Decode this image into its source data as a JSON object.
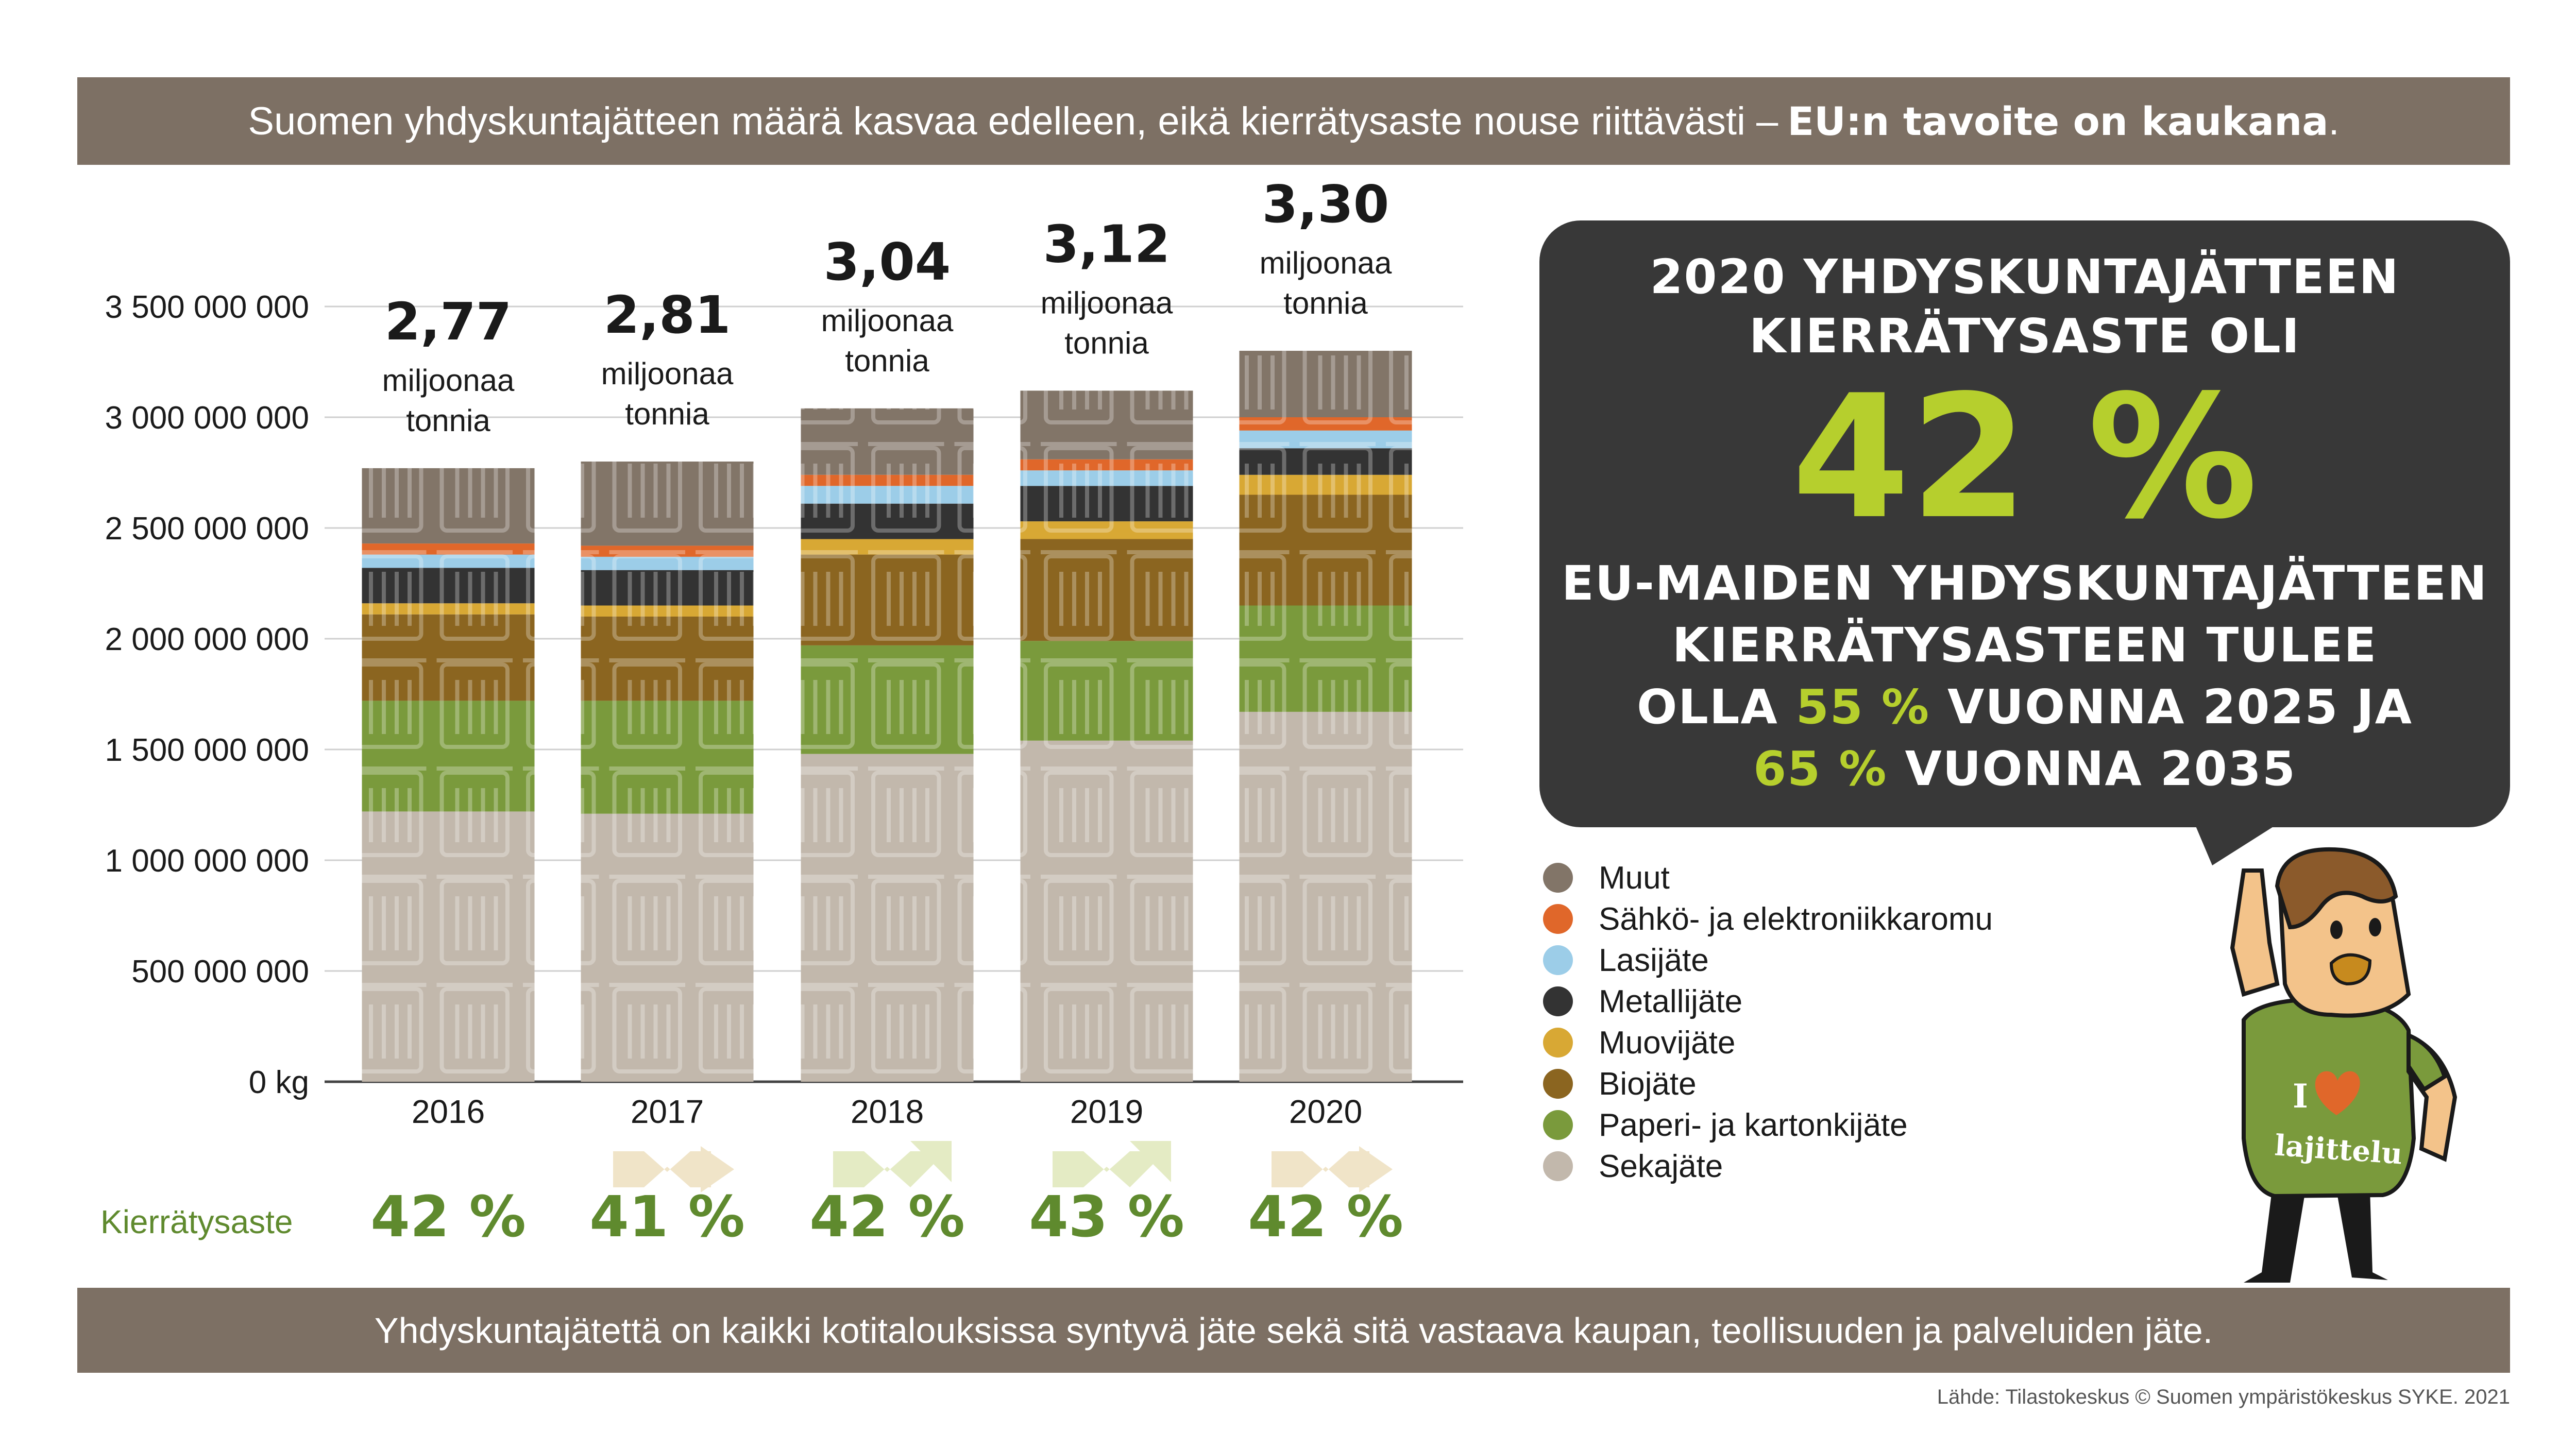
{
  "header": {
    "text": "Suomen yhdyskuntajätteen määrä kasvaa edelleen, eikä kierrätysaste nouse riittävästi –",
    "bold": "EU:n tavoite on kaukana",
    "period": "."
  },
  "footer": {
    "text": "Yhdyskuntajätettä on kaikki kotitalouksissa syntyvä jäte sekä sitä vastaava kaupan, teollisuuden ja palveluiden jäte."
  },
  "source": "Lähde: Tilastokeskus © Suomen ympäristökeskus SYKE. 2021",
  "bubble": {
    "line1": "2020 YHDYSKUNTAJÄTTEEN",
    "line2": "KIERRÄTYSASTE OLI",
    "big": "42 %",
    "line3": "EU-MAIDEN YHDYSKUNTAJÄTTEEN",
    "line4": "KIERRÄTYSASTEEN TULEE",
    "line5_pre": "OLLA",
    "line5_hl": "55 %",
    "line5_post": "VUONNA 2025 JA",
    "line6_hl": "65 %",
    "line6_post": "VUONNA 2035"
  },
  "kierratysaste_label": "Kierrätysaste",
  "colors": {
    "band": "#7d7064",
    "accent_green": "#b6cf2d",
    "rate_green": "#5f8a2e"
  },
  "mascot": {
    "shirt_line1": "I",
    "shirt_line2": "lajittelu",
    "heart_icon": "heart-icon"
  },
  "chart_data": {
    "type": "bar",
    "stacked": true,
    "categories": [
      "2016",
      "2017",
      "2018",
      "2019",
      "2020"
    ],
    "ylim": [
      0,
      3500000000
    ],
    "yticks": [
      0,
      500000000,
      1000000000,
      1500000000,
      2000000000,
      2500000000,
      3000000000,
      3500000000
    ],
    "ytick_labels": [
      "0 kg",
      "500 000 000",
      "1 000 000 000",
      "1 500 000 000",
      "2 000 000 000",
      "2 500 000 000",
      "3 000 000 000",
      "3 500 000 000"
    ],
    "grid": true,
    "legend_position": "right",
    "series": [
      {
        "name": "Sekajäte",
        "color": "#c2b8ac",
        "values": [
          1220000000,
          1210000000,
          1480000000,
          1540000000,
          1670000000
        ]
      },
      {
        "name": "Paperi- ja kartonkijäte",
        "color": "#7a9a3c",
        "values": [
          500000000,
          510000000,
          490000000,
          450000000,
          480000000
        ]
      },
      {
        "name": "Biojäte",
        "color": "#8b6520",
        "values": [
          390000000,
          380000000,
          410000000,
          460000000,
          500000000
        ]
      },
      {
        "name": "Muovijäte",
        "color": "#d8a834",
        "values": [
          50000000,
          50000000,
          70000000,
          80000000,
          90000000
        ]
      },
      {
        "name": "Metallijäte",
        "color": "#333333",
        "values": [
          160000000,
          160000000,
          160000000,
          160000000,
          120000000
        ]
      },
      {
        "name": "Lasijäte",
        "color": "#9ccde8",
        "values": [
          60000000,
          60000000,
          80000000,
          70000000,
          80000000
        ]
      },
      {
        "name": "Sähkö- ja elektroniikkaromu",
        "color": "#e0672a",
        "values": [
          50000000,
          50000000,
          50000000,
          50000000,
          60000000
        ]
      },
      {
        "name": "Muut",
        "color": "#827568",
        "values": [
          340000000,
          380000000,
          300000000,
          310000000,
          300000000
        ]
      }
    ],
    "totals_label": [
      "2,77",
      "2,81",
      "3,04",
      "3,12",
      "3,30"
    ],
    "totals_unit_line1": "miljoonaa",
    "totals_unit_line2": "tonnia",
    "recycling_rate": [
      "42 %",
      "41 %",
      "42 %",
      "43 %",
      "42 %"
    ],
    "trend": [
      "none",
      "down",
      "up",
      "up",
      "down"
    ]
  }
}
